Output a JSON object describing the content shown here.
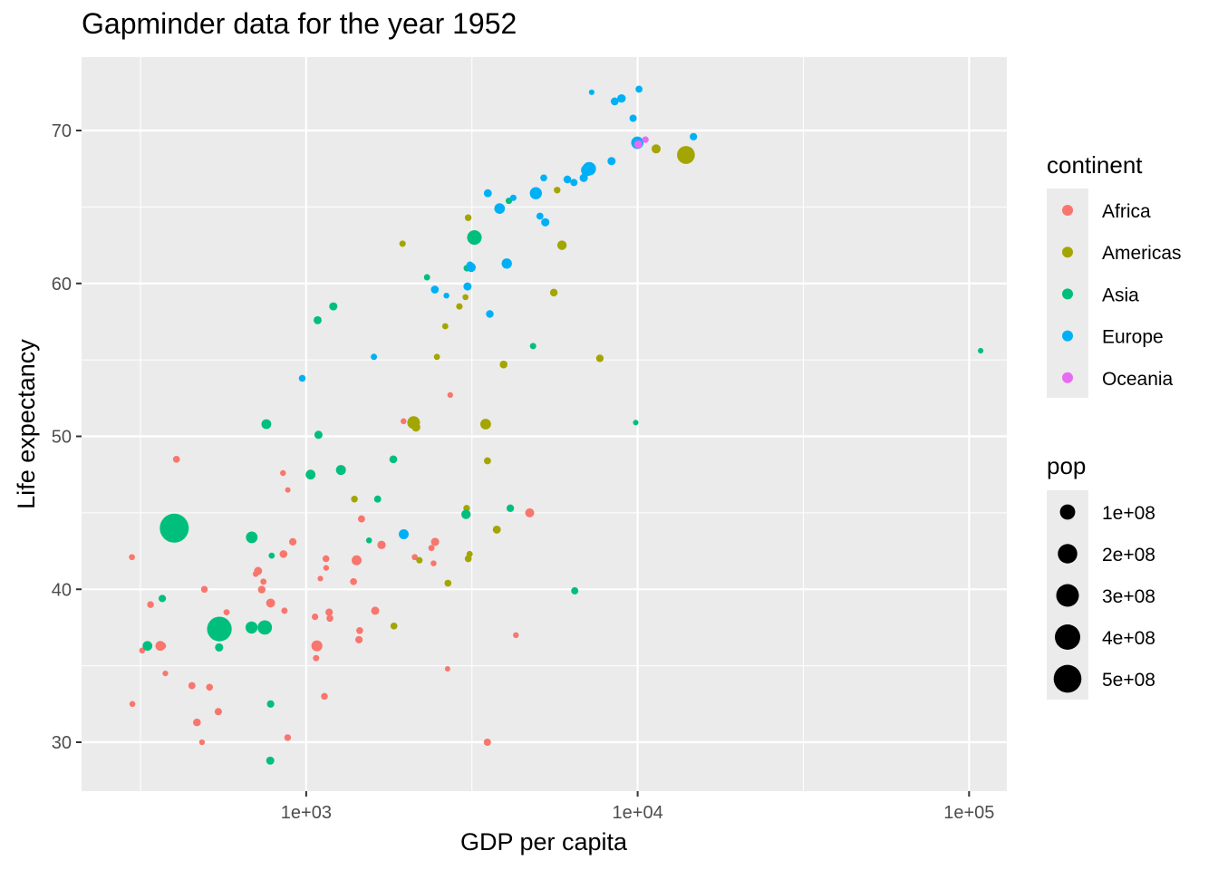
{
  "chart_data": {
    "type": "scatter",
    "title": "Gapminder data for the year 1952",
    "xlabel": "GDP per capita",
    "ylabel": "Life expectancy",
    "x_scale": "log10",
    "xlim": [
      210,
      130000
    ],
    "ylim": [
      26.8,
      74.8
    ],
    "x_ticks": [
      1000,
      10000,
      100000
    ],
    "x_tick_labels": [
      "1e+03",
      "1e+04",
      "1e+05"
    ],
    "y_ticks": [
      30,
      40,
      50,
      60,
      70
    ],
    "y_tick_labels": [
      "30",
      "40",
      "50",
      "60",
      "70"
    ],
    "grid": true,
    "panel_background": "#ebebeb",
    "legend_placement": "right",
    "legends": {
      "color": {
        "title": "continent",
        "entries": [
          {
            "label": "Africa",
            "color": "#f8766d"
          },
          {
            "label": "Americas",
            "color": "#a3a500"
          },
          {
            "label": "Asia",
            "color": "#00bf7d"
          },
          {
            "label": "Europe",
            "color": "#00b0f6"
          },
          {
            "label": "Oceania",
            "color": "#e76bf3"
          }
        ]
      },
      "size": {
        "title": "pop",
        "entries": [
          {
            "label": "1e+08",
            "value": 100000000
          },
          {
            "label": "2e+08",
            "value": 200000000
          },
          {
            "label": "3e+08",
            "value": 300000000
          },
          {
            "label": "4e+08",
            "value": 400000000
          },
          {
            "label": "5e+08",
            "value": 500000000
          }
        ]
      }
    },
    "series": [
      {
        "name": "Africa",
        "color": "#f8766d",
        "points": [
          [
            2449,
            43.1,
            9300000
          ],
          [
            3521,
            30.0,
            4200000
          ],
          [
            1063,
            38.2,
            1700000
          ],
          [
            851,
            47.6,
            440000
          ],
          [
            543,
            32.0,
            4500000
          ],
          [
            339,
            39.0,
            2400000
          ],
          [
            1173,
            38.5,
            5000000
          ],
          [
            1071,
            35.5,
            1300000
          ],
          [
            1179,
            38.1,
            2700000
          ],
          [
            1103,
            40.7,
            150000
          ],
          [
            781,
            39.1,
            14100000
          ],
          [
            2126,
            42.1,
            850000
          ],
          [
            1389,
            40.5,
            2980000
          ],
          [
            2670,
            34.8,
            63000
          ],
          [
            1419,
            41.9,
            22200000
          ],
          [
            376,
            34.5,
            216000
          ],
          [
            363,
            36.3,
            20800000
          ],
          [
            4294,
            37.0,
            420000
          ],
          [
            485,
            30.0,
            280000
          ],
          [
            911,
            43.1,
            5000000
          ],
          [
            511,
            33.6,
            2660000
          ],
          [
            299,
            32.5,
            580000
          ],
          [
            854,
            42.3,
            6460000
          ],
          [
            298,
            42.1,
            750000
          ],
          [
            575,
            38.5,
            860000
          ],
          [
            2388,
            42.7,
            1020000
          ],
          [
            1443,
            36.7,
            4760000
          ],
          [
            369,
            36.3,
            2920000
          ],
          [
            452,
            33.7,
            3840000
          ],
          [
            743,
            40.5,
            1000000
          ],
          [
            1967,
            50.99,
            517000
          ],
          [
            1688,
            42.9,
            9940000
          ],
          [
            468,
            31.3,
            6450000
          ],
          [
            2423,
            41.7,
            485000
          ],
          [
            761,
            37.4,
            3380000
          ],
          [
            1077,
            36.3,
            33100000
          ],
          [
            2719,
            52.7,
            257000
          ],
          [
            493,
            40.0,
            2530000
          ],
          [
            880,
            46.5,
            60000
          ],
          [
            1450,
            37.3,
            2760000
          ],
          [
            879,
            30.3,
            2140000
          ],
          [
            1135,
            33.0,
            2530000
          ],
          [
            4725,
            45.0,
            14300000
          ],
          [
            1615,
            38.6,
            8500000
          ],
          [
            1149,
            41.4,
            290000
          ],
          [
            716,
            41.2,
            8300000
          ],
          [
            860,
            38.6,
            1220000
          ],
          [
            1468,
            44.6,
            3650000
          ],
          [
            734,
            39.98,
            5820000
          ],
          [
            1147,
            42.0,
            2670000
          ],
          [
            406,
            48.5,
            3080000
          ],
          [
            320,
            36.0,
            450000
          ],
          [
            704,
            41.0,
            300000
          ]
        ]
      },
      {
        "name": "Americas",
        "color": "#a3a500",
        "points": [
          [
            5911,
            62.5,
            17900000
          ],
          [
            2677,
            40.4,
            2880000
          ],
          [
            2109,
            50.9,
            56600000
          ],
          [
            11367,
            68.8,
            14800000
          ],
          [
            3940,
            54.7,
            6380000
          ],
          [
            2144,
            50.6,
            12400000
          ],
          [
            2627,
            57.2,
            930000
          ],
          [
            5587,
            59.4,
            6000000
          ],
          [
            1398,
            45.9,
            2490000
          ],
          [
            3522,
            48.4,
            3550000
          ],
          [
            3048,
            45.3,
            2040000
          ],
          [
            3082,
            42.0,
            3150000
          ],
          [
            1840,
            37.6,
            3200000
          ],
          [
            2195,
            41.9,
            1520000
          ],
          [
            2898,
            58.5,
            1430000
          ],
          [
            3478,
            50.8,
            30100000
          ],
          [
            3112,
            42.3,
            1170000
          ],
          [
            2480,
            55.2,
            940000
          ],
          [
            1953,
            62.6,
            1560000
          ],
          [
            3759,
            43.9,
            8000000
          ],
          [
            3081,
            64.3,
            2230000
          ],
          [
            3023,
            59.1,
            660000
          ],
          [
            13990,
            68.4,
            157600000
          ],
          [
            5716,
            66.1,
            2250000
          ],
          [
            7690,
            55.1,
            5440000
          ]
        ]
      },
      {
        "name": "Asia",
        "color": "#00bf7d",
        "points": [
          [
            779,
            28.8,
            8400000
          ],
          [
            9867,
            50.9,
            120000
          ],
          [
            684,
            37.5,
            46900000
          ],
          [
            368,
            39.4,
            4690000
          ],
          [
            400,
            44.0,
            556300000
          ],
          [
            3054,
            61.0,
            2130000
          ],
          [
            547,
            37.4,
            372000000
          ],
          [
            750,
            37.5,
            82100000
          ],
          [
            3035,
            44.9,
            17300000
          ],
          [
            4130,
            45.3,
            5440000
          ],
          [
            4087,
            65.4,
            1620000
          ],
          [
            3217,
            63.0,
            86500000
          ],
          [
            1547,
            43.2,
            610000
          ],
          [
            1089,
            50.1,
            8870000
          ],
          [
            1031,
            47.5,
            20900000
          ],
          [
            108382,
            55.6,
            160000
          ],
          [
            4835,
            55.9,
            1440000
          ],
          [
            1831,
            48.5,
            6750000
          ],
          [
            787,
            42.2,
            800000
          ],
          [
            332,
            36.3,
            20100000
          ],
          [
            546,
            36.2,
            9180000
          ],
          [
            6460,
            39.9,
            510000
          ],
          [
            685,
            43.4,
            41300000
          ],
          [
            1273,
            47.8,
            22400000
          ],
          [
            6459,
            39.9,
            4000000
          ],
          [
            2315,
            60.4,
            1130000
          ],
          [
            1083,
            57.6,
            7980000
          ],
          [
            1643,
            45.9,
            3660000
          ],
          [
            1207,
            58.5,
            8690000
          ],
          [
            758,
            50.8,
            21300000
          ],
          [
            781,
            32.5,
            4960000
          ]
        ]
      },
      {
        "name": "Europe",
        "color": "#00b0f6",
        "points": [
          [
            1601,
            55.2,
            1280000
          ],
          [
            6137,
            66.8,
            6930000
          ],
          [
            8343,
            68.0,
            8730000
          ],
          [
            973,
            53.8,
            2790000
          ],
          [
            2444,
            59.6,
            7270000
          ],
          [
            3119,
            61.2,
            3880000
          ],
          [
            6877,
            66.9,
            9130000
          ],
          [
            9692,
            70.8,
            4330000
          ],
          [
            6425,
            66.6,
            4090000
          ],
          [
            7030,
            67.4,
            42500000
          ],
          [
            7144,
            67.5,
            69100000
          ],
          [
            3531,
            65.9,
            7730000
          ],
          [
            5264,
            64.0,
            9500000
          ],
          [
            7268,
            72.5,
            147000
          ],
          [
            5210,
            66.9,
            2950000
          ],
          [
            4931,
            65.9,
            47700000
          ],
          [
            2648,
            59.2,
            414000
          ],
          [
            8942,
            72.1,
            10400000
          ],
          [
            10095,
            72.7,
            3330000
          ],
          [
            4029,
            61.3,
            25700000
          ],
          [
            3068,
            59.8,
            8530000
          ],
          [
            3145,
            61.05,
            16600000
          ],
          [
            3581,
            58.0,
            6020000
          ],
          [
            5074,
            64.4,
            3560000
          ],
          [
            4215,
            65.6,
            1490000
          ],
          [
            3834,
            64.9,
            28500000
          ],
          [
            8528,
            71.9,
            7120000
          ],
          [
            14734,
            69.6,
            4820000
          ],
          [
            1969,
            43.6,
            22200000
          ],
          [
            9980,
            69.2,
            50400000
          ]
        ]
      },
      {
        "name": "Oceania",
        "color": "#e76bf3",
        "points": [
          [
            10040,
            69.1,
            8690000
          ],
          [
            10557,
            69.4,
            1990000
          ]
        ]
      }
    ]
  }
}
